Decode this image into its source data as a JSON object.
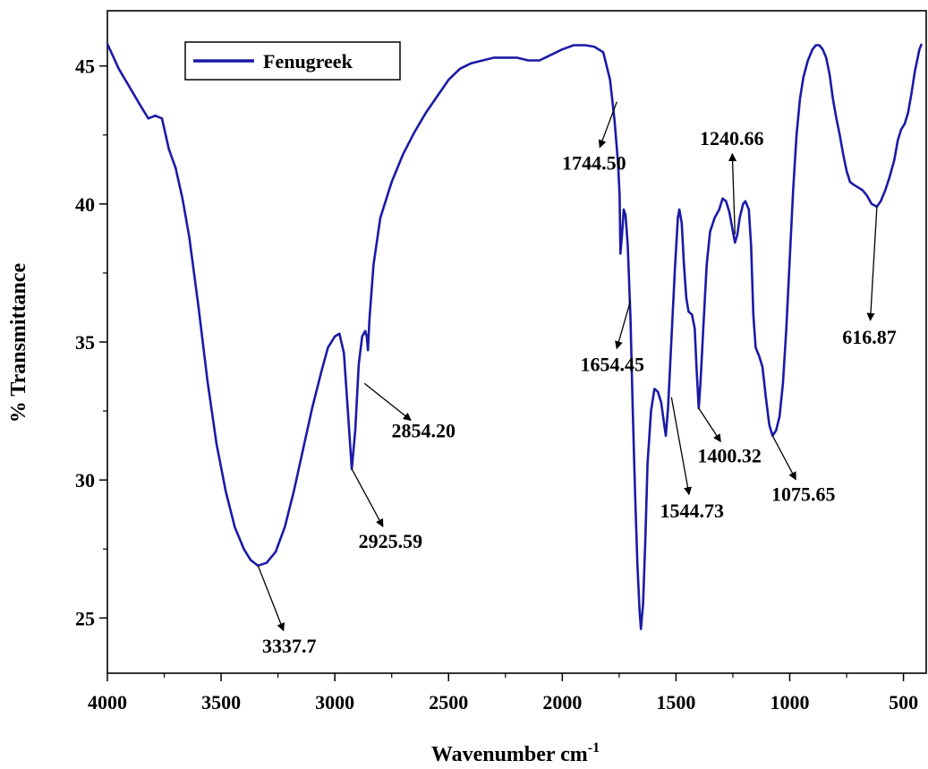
{
  "chart_data": {
    "type": "line",
    "xlabel": "Wavenumber cm",
    "xlabel_sup": "-1",
    "ylabel": "% Transmittance",
    "xlim": [
      4000,
      400
    ],
    "ylim": [
      23,
      47
    ],
    "x_reversed": true,
    "x_ticks": [
      4000,
      3500,
      3000,
      2500,
      2000,
      1500,
      1000,
      500
    ],
    "y_ticks": [
      25,
      30,
      35,
      40,
      45
    ],
    "grid": false,
    "legend": {
      "position": "top-left",
      "entries": [
        "Fenugreek"
      ]
    },
    "series": [
      {
        "name": "Fenugreek",
        "color": "#1a1aa6",
        "points": [
          [
            4000,
            45.8
          ],
          [
            3950,
            44.9
          ],
          [
            3900,
            44.2
          ],
          [
            3850,
            43.5
          ],
          [
            3820,
            43.1
          ],
          [
            3790,
            43.2
          ],
          [
            3760,
            43.1
          ],
          [
            3730,
            42.0
          ],
          [
            3700,
            41.3
          ],
          [
            3670,
            40.2
          ],
          [
            3640,
            38.8
          ],
          [
            3600,
            36.3
          ],
          [
            3560,
            33.6
          ],
          [
            3520,
            31.3
          ],
          [
            3480,
            29.6
          ],
          [
            3440,
            28.3
          ],
          [
            3400,
            27.5
          ],
          [
            3370,
            27.1
          ],
          [
            3337.7,
            26.9
          ],
          [
            3300,
            27.0
          ],
          [
            3260,
            27.4
          ],
          [
            3220,
            28.3
          ],
          [
            3180,
            29.6
          ],
          [
            3140,
            31.1
          ],
          [
            3100,
            32.6
          ],
          [
            3060,
            33.9
          ],
          [
            3030,
            34.8
          ],
          [
            3000,
            35.2
          ],
          [
            2980,
            35.3
          ],
          [
            2960,
            34.6
          ],
          [
            2945,
            32.8
          ],
          [
            2925.59,
            30.4
          ],
          [
            2910,
            31.8
          ],
          [
            2895,
            34.2
          ],
          [
            2880,
            35.2
          ],
          [
            2866,
            35.4
          ],
          [
            2860,
            35.2
          ],
          [
            2854.2,
            34.7
          ],
          [
            2848,
            35.8
          ],
          [
            2830,
            37.8
          ],
          [
            2800,
            39.5
          ],
          [
            2750,
            40.8
          ],
          [
            2700,
            41.8
          ],
          [
            2650,
            42.6
          ],
          [
            2600,
            43.3
          ],
          [
            2550,
            43.9
          ],
          [
            2500,
            44.5
          ],
          [
            2450,
            44.9
          ],
          [
            2400,
            45.1
          ],
          [
            2350,
            45.2
          ],
          [
            2300,
            45.3
          ],
          [
            2250,
            45.3
          ],
          [
            2200,
            45.3
          ],
          [
            2150,
            45.2
          ],
          [
            2100,
            45.2
          ],
          [
            2050,
            45.4
          ],
          [
            2000,
            45.6
          ],
          [
            1950,
            45.75
          ],
          [
            1900,
            45.75
          ],
          [
            1860,
            45.7
          ],
          [
            1820,
            45.5
          ],
          [
            1790,
            44.5
          ],
          [
            1770,
            43.0
          ],
          [
            1755,
            41.5
          ],
          [
            1748,
            40.3
          ],
          [
            1744.5,
            38.2
          ],
          [
            1738,
            38.8
          ],
          [
            1730,
            39.8
          ],
          [
            1722,
            39.6
          ],
          [
            1712,
            38.5
          ],
          [
            1700,
            35.8
          ],
          [
            1690,
            32.5
          ],
          [
            1680,
            29.5
          ],
          [
            1670,
            27.0
          ],
          [
            1660,
            25.2
          ],
          [
            1654.45,
            24.6
          ],
          [
            1645,
            25.5
          ],
          [
            1635,
            27.8
          ],
          [
            1625,
            30.6
          ],
          [
            1610,
            32.5
          ],
          [
            1595,
            33.3
          ],
          [
            1580,
            33.2
          ],
          [
            1565,
            32.8
          ],
          [
            1555,
            32.2
          ],
          [
            1544.73,
            31.6
          ],
          [
            1535,
            32.6
          ],
          [
            1520,
            35.1
          ],
          [
            1505,
            37.6
          ],
          [
            1492,
            39.5
          ],
          [
            1485,
            39.8
          ],
          [
            1475,
            39.3
          ],
          [
            1465,
            37.8
          ],
          [
            1455,
            36.6
          ],
          [
            1445,
            36.1
          ],
          [
            1430,
            36.0
          ],
          [
            1418,
            35.5
          ],
          [
            1410,
            34.1
          ],
          [
            1400.32,
            32.6
          ],
          [
            1392,
            33.6
          ],
          [
            1380,
            35.5
          ],
          [
            1365,
            37.8
          ],
          [
            1350,
            39.0
          ],
          [
            1330,
            39.5
          ],
          [
            1310,
            39.8
          ],
          [
            1295,
            40.2
          ],
          [
            1280,
            40.1
          ],
          [
            1265,
            39.7
          ],
          [
            1250,
            39.0
          ],
          [
            1240.66,
            38.6
          ],
          [
            1230,
            38.9
          ],
          [
            1220,
            39.5
          ],
          [
            1205,
            40.0
          ],
          [
            1195,
            40.1
          ],
          [
            1180,
            39.8
          ],
          [
            1170,
            38.5
          ],
          [
            1160,
            36.0
          ],
          [
            1150,
            34.8
          ],
          [
            1135,
            34.5
          ],
          [
            1120,
            34.1
          ],
          [
            1105,
            33.0
          ],
          [
            1090,
            32.0
          ],
          [
            1075.65,
            31.6
          ],
          [
            1060,
            31.8
          ],
          [
            1045,
            32.3
          ],
          [
            1030,
            33.5
          ],
          [
            1015,
            35.5
          ],
          [
            1000,
            38.0
          ],
          [
            985,
            40.5
          ],
          [
            970,
            42.5
          ],
          [
            955,
            43.8
          ],
          [
            940,
            44.6
          ],
          [
            920,
            45.2
          ],
          [
            900,
            45.6
          ],
          [
            885,
            45.75
          ],
          [
            870,
            45.75
          ],
          [
            855,
            45.6
          ],
          [
            840,
            45.3
          ],
          [
            825,
            44.7
          ],
          [
            810,
            43.8
          ],
          [
            795,
            43.1
          ],
          [
            780,
            42.5
          ],
          [
            765,
            41.8
          ],
          [
            750,
            41.2
          ],
          [
            735,
            40.8
          ],
          [
            720,
            40.7
          ],
          [
            700,
            40.6
          ],
          [
            680,
            40.5
          ],
          [
            660,
            40.3
          ],
          [
            640,
            40.0
          ],
          [
            616.87,
            39.9
          ],
          [
            600,
            40.1
          ],
          [
            580,
            40.5
          ],
          [
            560,
            41.0
          ],
          [
            540,
            41.6
          ],
          [
            525,
            42.3
          ],
          [
            510,
            42.7
          ],
          [
            495,
            42.9
          ],
          [
            480,
            43.3
          ],
          [
            465,
            44.0
          ],
          [
            450,
            44.8
          ],
          [
            430,
            45.6
          ],
          [
            420,
            45.8
          ]
        ]
      }
    ],
    "annotations": [
      {
        "label": "3337.7",
        "x": 3337.7,
        "y": 26.9,
        "text_x": 3200,
        "text_y": 24.0,
        "arrow_dir": "down-right"
      },
      {
        "label": "2925.59",
        "x": 2925.59,
        "y": 30.4,
        "text_x": 2755,
        "text_y": 27.8,
        "arrow_dir": "down-right"
      },
      {
        "label": "2854.20",
        "x": 2870,
        "y": 33.5,
        "text_x": 2610,
        "text_y": 31.8,
        "arrow_dir": "right"
      },
      {
        "label": "1744.50",
        "x": 1760,
        "y": 43.7,
        "text_x": 1860,
        "text_y": 41.5,
        "arrow_dir": "left"
      },
      {
        "label": "1654.45",
        "x": 1700,
        "y": 36.5,
        "text_x": 1780,
        "text_y": 34.2,
        "arrow_dir": "left"
      },
      {
        "label": "1544.73",
        "x": 1520,
        "y": 33.0,
        "text_x": 1430,
        "text_y": 28.9,
        "arrow_dir": "down"
      },
      {
        "label": "1400.32",
        "x": 1400.32,
        "y": 32.6,
        "text_x": 1265,
        "text_y": 30.9,
        "arrow_dir": "down-right"
      },
      {
        "label": "1240.66",
        "x": 1240.66,
        "y": 38.9,
        "text_x": 1255,
        "text_y": 42.4,
        "arrow_dir": "up-left"
      },
      {
        "label": "1075.65",
        "x": 1075.65,
        "y": 31.6,
        "text_x": 940,
        "text_y": 29.5,
        "arrow_dir": "down-right"
      },
      {
        "label": "616.87",
        "x": 616.87,
        "y": 39.9,
        "text_x": 650,
        "text_y": 35.2,
        "arrow_dir": "down"
      }
    ]
  }
}
